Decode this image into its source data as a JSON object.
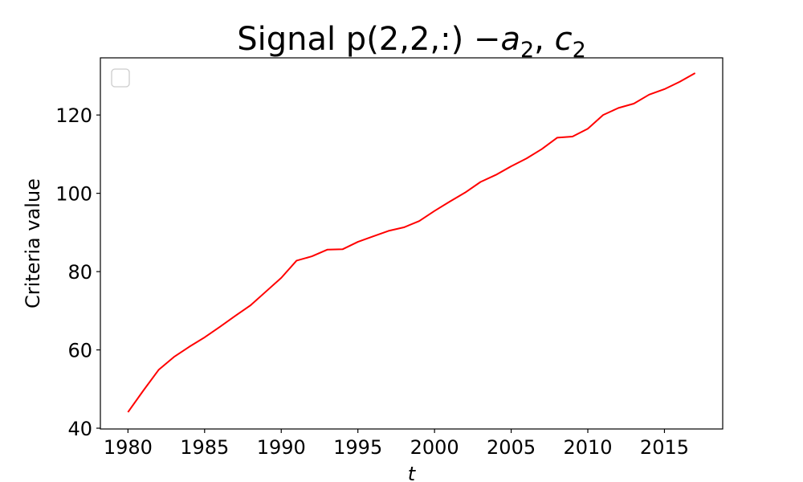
{
  "chart_data": {
    "type": "line",
    "title": "Signal p(2,2,:) −a₂, c₂",
    "title_parts": {
      "prefix": "Signal p(2,2,:) −",
      "a": "a",
      "a_sub": "2",
      "sep": ", ",
      "c": "c",
      "c_sub": "2"
    },
    "xlabel": "t",
    "ylabel": "Criteria value",
    "xlim": [
      1978.2,
      2018.8
    ],
    "ylim": [
      39.8,
      134.6
    ],
    "x_ticks": [
      1980,
      1985,
      1990,
      1995,
      2000,
      2005,
      2010,
      2015
    ],
    "y_ticks": [
      40,
      60,
      80,
      100,
      120
    ],
    "grid": false,
    "legend": {
      "placement": "top-left",
      "entries": []
    },
    "series": [
      {
        "color": "#ff0000",
        "x": [
          1980,
          1981,
          1982,
          1983,
          1984,
          1985,
          1986,
          1987,
          1988,
          1989,
          1990,
          1991,
          1992,
          1993,
          1994,
          1995,
          1996,
          1997,
          1998,
          1999,
          2000,
          2001,
          2002,
          2003,
          2004,
          2005,
          2006,
          2007,
          2008,
          2009,
          2010,
          2011,
          2012,
          2013,
          2014,
          2015,
          2016,
          2017
        ],
        "y": [
          44.1,
          49.6,
          54.9,
          58.2,
          60.8,
          63.2,
          65.9,
          68.7,
          71.4,
          74.9,
          78.4,
          82.8,
          83.9,
          85.6,
          85.7,
          87.6,
          89.0,
          90.4,
          91.3,
          92.9,
          95.5,
          97.9,
          100.2,
          102.9,
          104.7,
          106.9,
          108.9,
          111.3,
          114.2,
          114.5,
          116.5,
          120.0,
          121.8,
          122.9,
          125.2,
          126.6,
          128.5,
          130.7
        ]
      }
    ]
  }
}
